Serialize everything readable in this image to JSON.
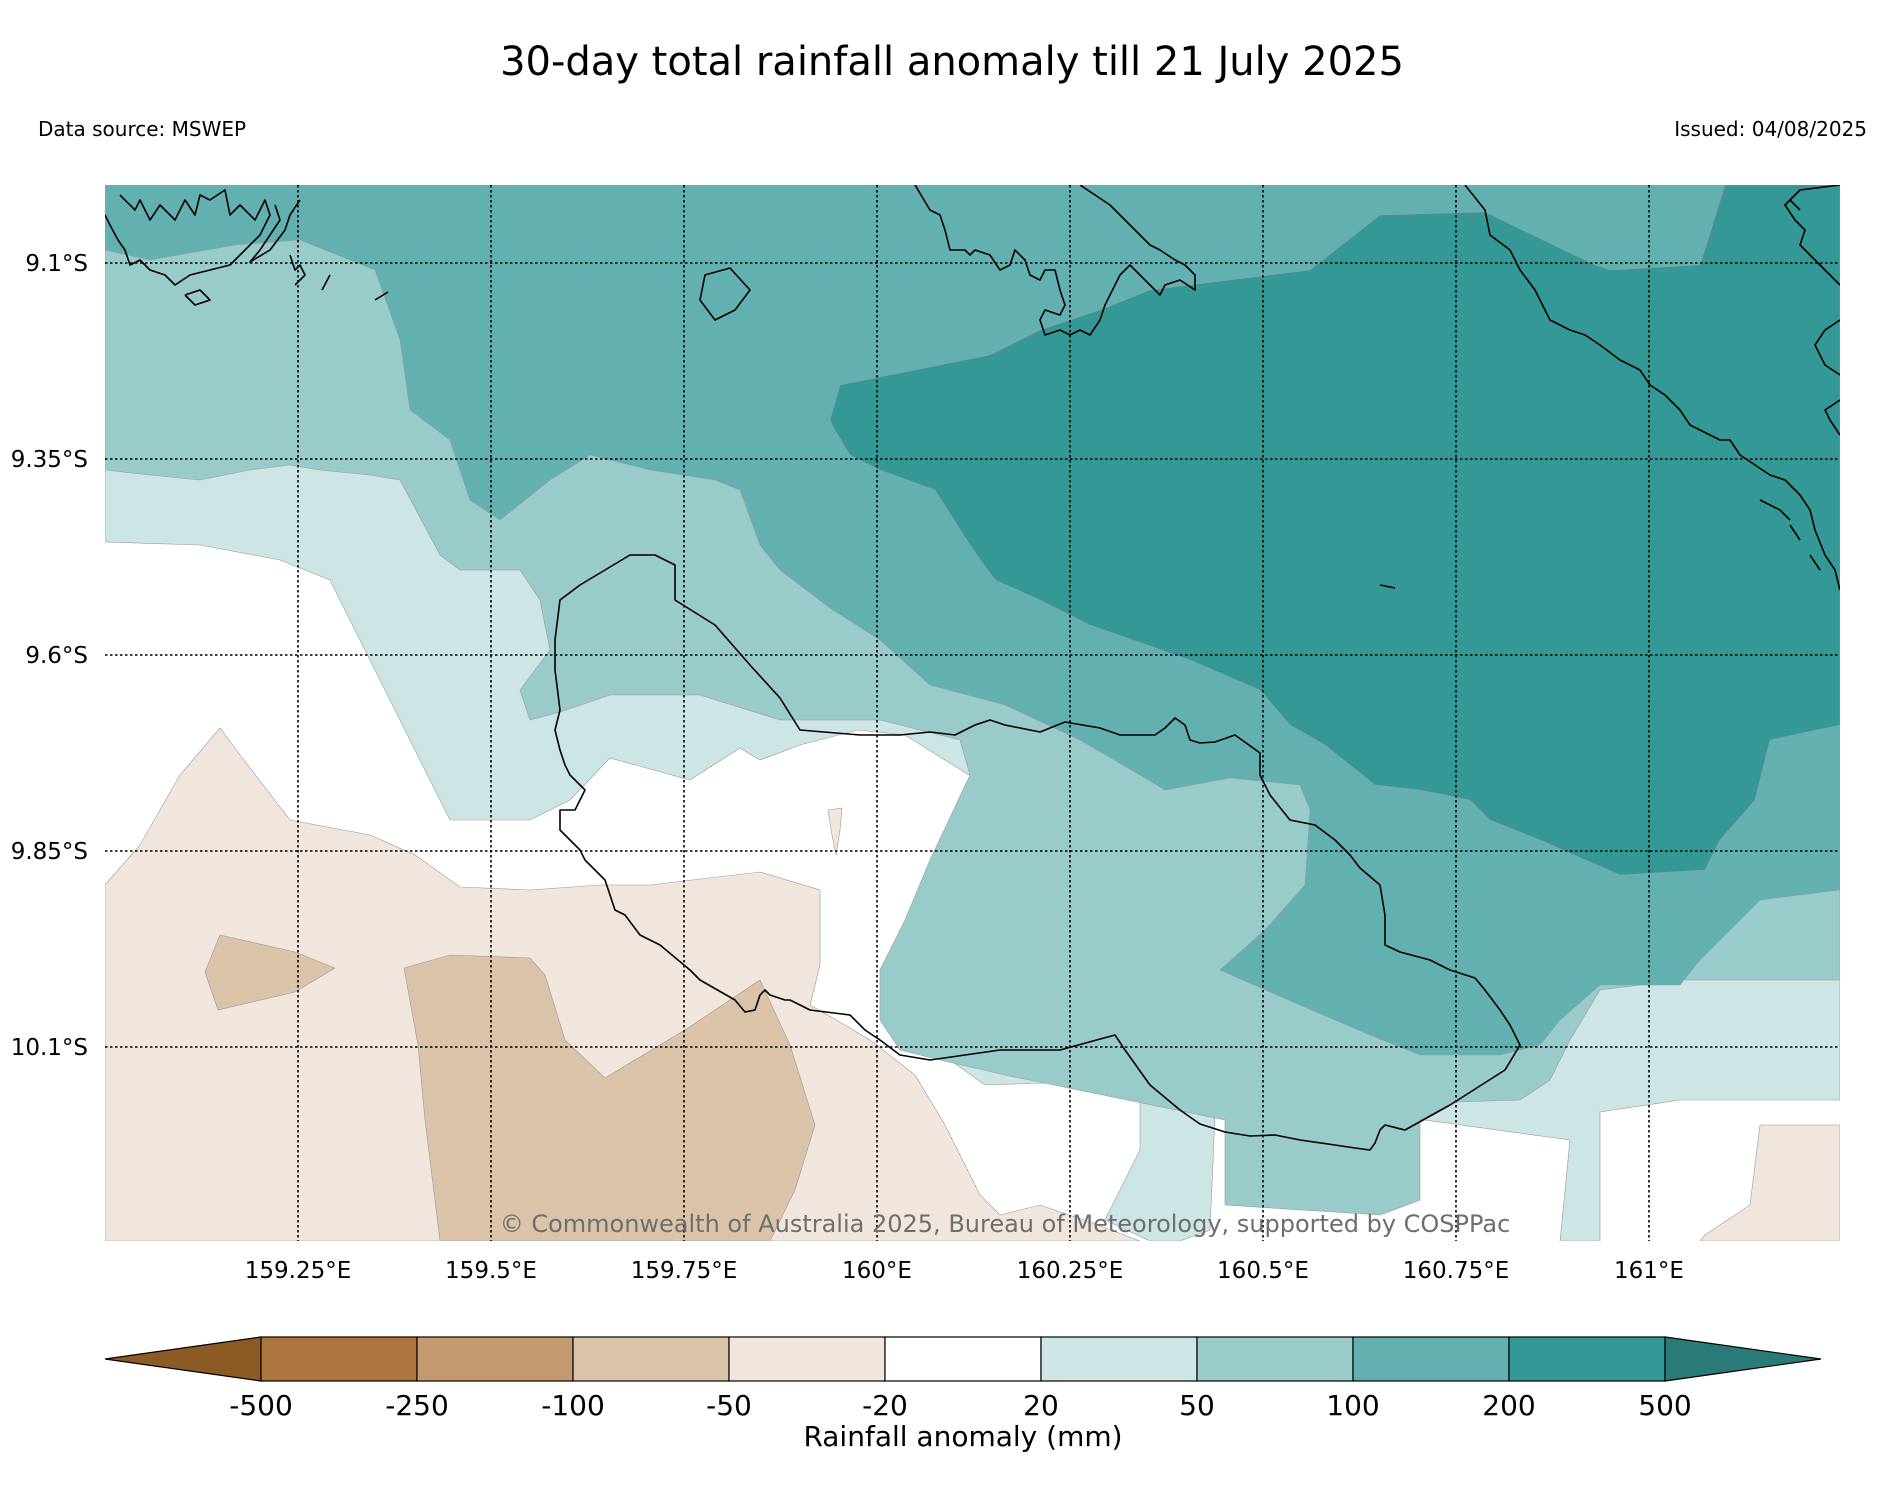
{
  "title": "30-day total rainfall anomaly till 21 July 2025",
  "data_source": "Data source: MSWEP",
  "issued": "Issued: 04/08/2025",
  "copyright": "© Commonwealth of Australia 2025, Bureau of Meteorology, supported by COSPPac",
  "lat_labels": [
    "9.1°S",
    "9.35°S",
    "9.6°S",
    "9.85°S",
    "10.1°S"
  ],
  "lon_labels": [
    "159.25°E",
    "159.5°E",
    "159.75°E",
    "160°E",
    "160.25°E",
    "160.5°E",
    "160.75°E",
    "161°E"
  ],
  "colorbar": {
    "label": "Rainfall anomaly (mm)",
    "ticks": [
      "-500",
      "-250",
      "-100",
      "-50",
      "-20",
      "20",
      "50",
      "100",
      "200",
      "500"
    ],
    "colors": [
      "#8c5a25",
      "#ad7640",
      "#c49a6f",
      "#dbc3aa",
      "#f0e6dd",
      "#ffffff",
      "#cde5e4",
      "#9acbcb",
      "#62b0b0",
      "#339896",
      "#2a7a78"
    ]
  }
}
